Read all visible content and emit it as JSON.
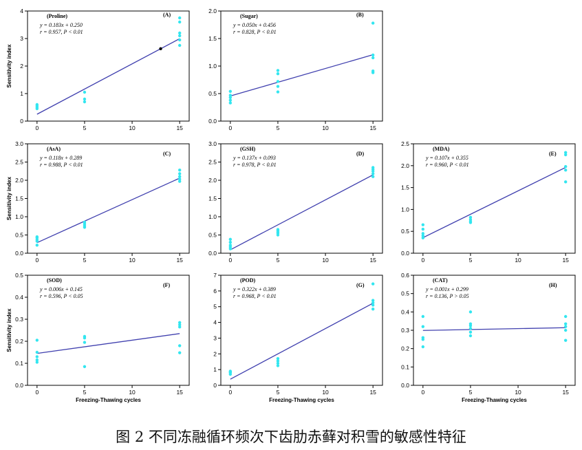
{
  "figure": {
    "caption": "图 2 不同冻融循环频次下齿肋赤藓对积雪的敏感性特征",
    "ylabel": "Sensitivity index",
    "xlabel": "Freezing-Thawing cycles",
    "colors": {
      "points": "#33e6f0",
      "line": "#3f3fae",
      "axis": "#000000"
    }
  },
  "chart_data": [
    {
      "type": "scatter",
      "title": "(Proline)",
      "panel": "(A)",
      "equation": "y = 0.183x + 0.250",
      "stats": "r = 0.957, P < 0.01",
      "ylim": [
        0,
        4
      ],
      "yticks": [
        "0",
        "1",
        "2",
        "3",
        "4"
      ],
      "xlim": [
        -1,
        16
      ],
      "xticks": [
        "0",
        "5",
        "10",
        "15"
      ],
      "show_ylabel": true,
      "show_xlabel": false,
      "fit": {
        "slope": 0.183,
        "intercept": 0.25
      },
      "points": {
        "x": [
          0,
          0,
          0,
          0,
          5,
          5,
          5,
          15,
          15,
          15,
          15,
          15,
          15
        ],
        "y": [
          0.45,
          0.5,
          0.55,
          0.6,
          0.7,
          0.8,
          1.05,
          2.75,
          2.95,
          3.1,
          3.2,
          3.6,
          3.75
        ]
      },
      "extra_points": {
        "x": [
          13
        ],
        "y": [
          2.63
        ]
      }
    },
    {
      "type": "scatter",
      "title": "(Sugar)",
      "panel": "(B)",
      "equation": "y = 0.050x + 0.456",
      "stats": "r = 0.828, P < 0.01",
      "ylim": [
        0,
        2
      ],
      "yticks": [
        "0.0",
        "0.5",
        "1.0",
        "1.5",
        "2.0"
      ],
      "xlim": [
        -1,
        16
      ],
      "xticks": [
        "0",
        "5",
        "10",
        "15"
      ],
      "show_ylabel": false,
      "show_xlabel": false,
      "fit": {
        "slope": 0.05,
        "intercept": 0.456
      },
      "points": {
        "x": [
          0,
          0,
          0,
          0,
          0,
          5,
          5,
          5,
          5,
          5,
          15,
          15,
          15,
          15,
          15
        ],
        "y": [
          0.33,
          0.38,
          0.43,
          0.47,
          0.54,
          0.53,
          0.63,
          0.72,
          0.86,
          0.92,
          0.88,
          0.91,
          1.15,
          1.2,
          1.78
        ]
      }
    },
    {
      "type": "scatter",
      "title": "(AsA)",
      "panel": "(C)",
      "equation": "y = 0.118x + 0.289",
      "stats": "r = 0.988, P < 0.01",
      "ylim": [
        0,
        3
      ],
      "yticks": [
        "0.0",
        "0.5",
        "1.0",
        "1.5",
        "2.0",
        "2.5",
        "3.0"
      ],
      "xlim": [
        -1,
        16
      ],
      "xticks": [
        "0",
        "5",
        "10",
        "15"
      ],
      "show_ylabel": true,
      "show_xlabel": false,
      "fit": {
        "slope": 0.118,
        "intercept": 0.289
      },
      "points": {
        "x": [
          0,
          0,
          0,
          0,
          0,
          5,
          5,
          5,
          5,
          15,
          15,
          15,
          15,
          15
        ],
        "y": [
          0.22,
          0.33,
          0.37,
          0.42,
          0.45,
          0.71,
          0.75,
          0.8,
          0.85,
          1.97,
          2.03,
          2.1,
          2.18,
          2.28
        ]
      }
    },
    {
      "type": "scatter",
      "title": "(GSH)",
      "panel": "(D)",
      "equation": "y = 0.137x + 0.093",
      "stats": "r = 0.978, P < 0.01",
      "ylim": [
        0,
        3
      ],
      "yticks": [
        "0.0",
        "0.5",
        "1.0",
        "1.5",
        "2.0",
        "2.5",
        "3.0"
      ],
      "xlim": [
        -1,
        16
      ],
      "xticks": [
        "0",
        "5",
        "10",
        "15"
      ],
      "show_ylabel": false,
      "show_xlabel": false,
      "fit": {
        "slope": 0.137,
        "intercept": 0.093
      },
      "points": {
        "x": [
          0,
          0,
          0,
          0,
          0,
          5,
          5,
          5,
          5,
          5,
          15,
          15,
          15,
          15,
          15
        ],
        "y": [
          0.12,
          0.17,
          0.22,
          0.3,
          0.38,
          0.5,
          0.55,
          0.58,
          0.62,
          0.65,
          2.1,
          2.18,
          2.25,
          2.3,
          2.35
        ]
      }
    },
    {
      "type": "scatter",
      "title": "(MDA)",
      "panel": "(E)",
      "equation": "y = 0.107x + 0.355",
      "stats": "r = 0.960, P < 0.01",
      "ylim": [
        0,
        2.5
      ],
      "yticks": [
        "0.0",
        "0.5",
        "1.0",
        "1.5",
        "2.0",
        "2.5"
      ],
      "xlim": [
        -1,
        16
      ],
      "xticks": [
        "0",
        "5",
        "10",
        "15"
      ],
      "show_ylabel": false,
      "show_xlabel": false,
      "fit": {
        "slope": 0.107,
        "intercept": 0.355
      },
      "points": {
        "x": [
          0,
          0,
          0,
          0,
          0,
          5,
          5,
          5,
          5,
          15,
          15,
          15,
          15,
          15
        ],
        "y": [
          0.35,
          0.4,
          0.45,
          0.55,
          0.65,
          0.7,
          0.73,
          0.77,
          0.82,
          1.63,
          1.9,
          1.98,
          2.25,
          2.3
        ]
      }
    },
    {
      "type": "scatter",
      "title": "(SOD)",
      "panel": "(F)",
      "equation": "y = 0.006x + 0.145",
      "stats": "r = 0.596, P < 0.05",
      "ylim": [
        0,
        0.5
      ],
      "yticks": [
        "0.0",
        "0.1",
        "0.2",
        "0.3",
        "0.4",
        "0.5"
      ],
      "xlim": [
        -1,
        16
      ],
      "xticks": [
        "0",
        "5",
        "10",
        "15"
      ],
      "show_ylabel": true,
      "show_xlabel": true,
      "fit": {
        "slope": 0.006,
        "intercept": 0.145
      },
      "points": {
        "x": [
          0,
          0,
          0,
          0,
          0,
          5,
          5,
          5,
          5,
          15,
          15,
          15,
          15,
          15
        ],
        "y": [
          0.105,
          0.115,
          0.13,
          0.15,
          0.205,
          0.085,
          0.195,
          0.215,
          0.222,
          0.148,
          0.18,
          0.265,
          0.275,
          0.285
        ]
      }
    },
    {
      "type": "scatter",
      "title": "(POD)",
      "panel": "(G)",
      "equation": "y = 0.322x + 0.389",
      "stats": "r = 0.968, P < 0.01",
      "ylim": [
        0,
        7
      ],
      "yticks": [
        "0",
        "1",
        "2",
        "3",
        "4",
        "5",
        "6",
        "7"
      ],
      "xlim": [
        -1,
        16
      ],
      "xticks": [
        "0",
        "5",
        "10",
        "15"
      ],
      "show_ylabel": false,
      "show_xlabel": true,
      "fit": {
        "slope": 0.322,
        "intercept": 0.389
      },
      "points": {
        "x": [
          0,
          0,
          0,
          0,
          5,
          5,
          5,
          5,
          15,
          15,
          15,
          15,
          15
        ],
        "y": [
          0.7,
          0.8,
          0.85,
          0.9,
          1.25,
          1.4,
          1.55,
          1.7,
          4.85,
          5.1,
          5.25,
          5.4,
          6.45
        ]
      }
    },
    {
      "type": "scatter",
      "title": "(CAT)",
      "panel": "(H)",
      "equation": "y = 0.001x + 0.299",
      "stats": "r = 0.136, P > 0.05",
      "ylim": [
        0,
        0.6
      ],
      "yticks": [
        "0.0",
        "0.1",
        "0.2",
        "0.3",
        "0.4",
        "0.5",
        "0.6"
      ],
      "xlim": [
        -1,
        16
      ],
      "xticks": [
        "0",
        "5",
        "10",
        "15"
      ],
      "show_ylabel": false,
      "show_xlabel": true,
      "fit": {
        "slope": 0.001,
        "intercept": 0.299
      },
      "points": {
        "x": [
          0,
          0,
          0,
          0,
          0,
          5,
          5,
          5,
          5,
          5,
          5,
          15,
          15,
          15,
          15,
          15
        ],
        "y": [
          0.21,
          0.25,
          0.26,
          0.32,
          0.375,
          0.27,
          0.29,
          0.31,
          0.325,
          0.335,
          0.4,
          0.245,
          0.3,
          0.32,
          0.335,
          0.375
        ]
      }
    }
  ]
}
